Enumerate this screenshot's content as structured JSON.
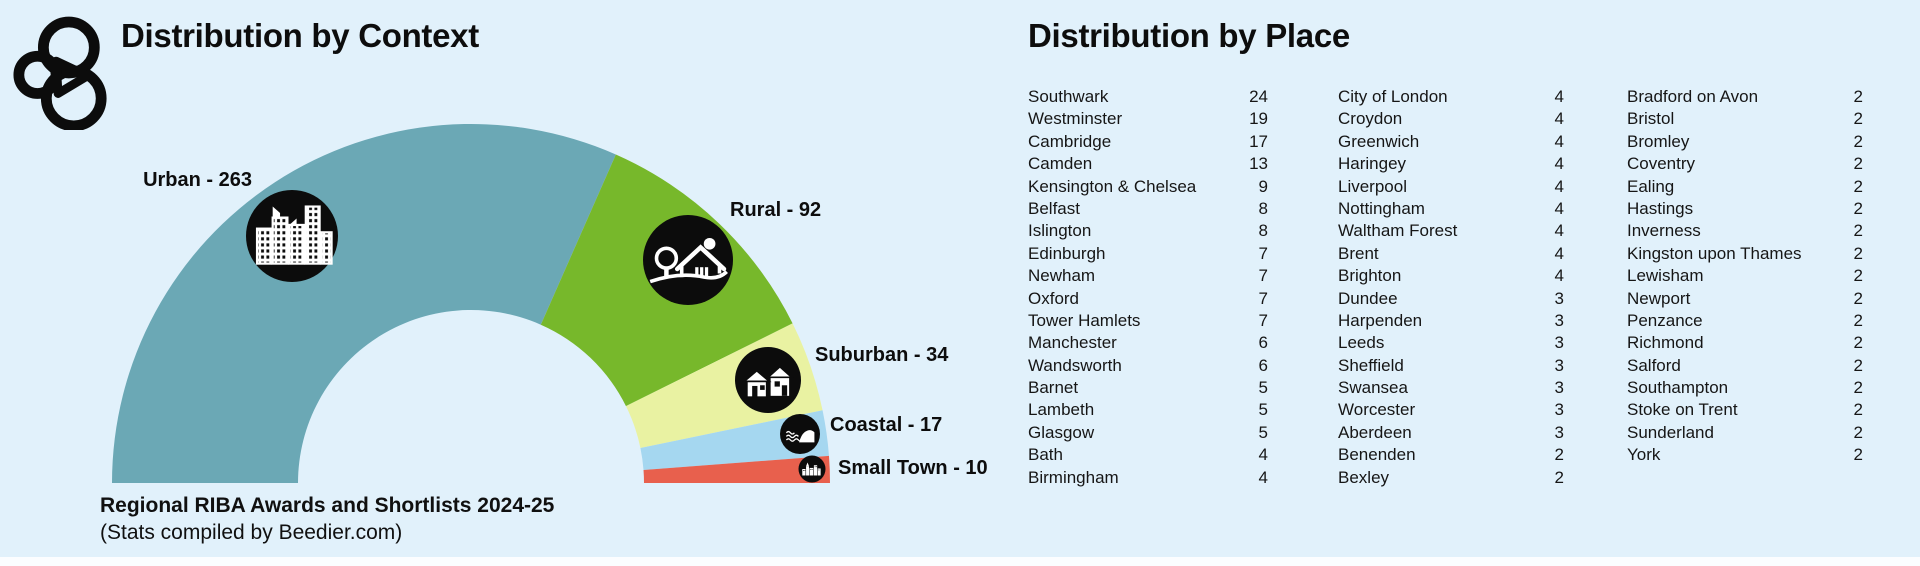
{
  "page": {
    "background_color": "#e1f1fb",
    "text_color": "#0d0d0d"
  },
  "context_section": {
    "title": "Distribution by Context",
    "footer_line1": "Regional RIBA Awards and Shortlists 2024-25",
    "footer_line2": "(Stats compiled by Beedier.com)"
  },
  "chart_data": {
    "type": "pie",
    "variant": "half-donut",
    "title": "Distribution by Context",
    "categories": [
      "Urban",
      "Rural",
      "Suburban",
      "Coastal",
      "Small Town"
    ],
    "values": [
      263,
      92,
      34,
      17,
      10
    ],
    "colors": [
      "#6ba8b5",
      "#77b82b",
      "#e9f2a2",
      "#a5d7f0",
      "#e8604d"
    ],
    "icon_names": [
      "urban-buildings-icon",
      "rural-house-icon",
      "suburban-houses-icon",
      "coastal-wave-icon",
      "small-town-icon"
    ],
    "label_separator": " - ",
    "start_angle_deg": 180,
    "end_angle_deg": 0,
    "legend_position": "around-arc"
  },
  "place_section": {
    "title": "Distribution by Place",
    "columns": [
      {
        "rows": [
          {
            "name": "Southwark",
            "value": 24
          },
          {
            "name": "Westminster",
            "value": 19
          },
          {
            "name": "Cambridge",
            "value": 17
          },
          {
            "name": "Camden",
            "value": 13
          },
          {
            "name": "Kensington & Chelsea",
            "value": 9
          },
          {
            "name": "Belfast",
            "value": 8
          },
          {
            "name": "Islington",
            "value": 8
          },
          {
            "name": "Edinburgh",
            "value": 7
          },
          {
            "name": "Newham",
            "value": 7
          },
          {
            "name": "Oxford",
            "value": 7
          },
          {
            "name": "Tower Hamlets",
            "value": 7
          },
          {
            "name": "Manchester",
            "value": 6
          },
          {
            "name": "Wandsworth",
            "value": 6
          },
          {
            "name": "Barnet",
            "value": 5
          },
          {
            "name": "Lambeth",
            "value": 5
          },
          {
            "name": "Glasgow",
            "value": 5
          },
          {
            "name": "Bath",
            "value": 4
          },
          {
            "name": "Birmingham",
            "value": 4
          }
        ]
      },
      {
        "rows": [
          {
            "name": "City of London",
            "value": 4
          },
          {
            "name": "Croydon",
            "value": 4
          },
          {
            "name": "Greenwich",
            "value": 4
          },
          {
            "name": "Haringey",
            "value": 4
          },
          {
            "name": "Liverpool",
            "value": 4
          },
          {
            "name": "Nottingham",
            "value": 4
          },
          {
            "name": "Waltham Forest",
            "value": 4
          },
          {
            "name": "Brent",
            "value": 4
          },
          {
            "name": "Brighton",
            "value": 4
          },
          {
            "name": "Dundee",
            "value": 3
          },
          {
            "name": "Harpenden",
            "value": 3
          },
          {
            "name": "Leeds",
            "value": 3
          },
          {
            "name": "Sheffield",
            "value": 3
          },
          {
            "name": "Swansea",
            "value": 3
          },
          {
            "name": "Worcester",
            "value": 3
          },
          {
            "name": "Aberdeen",
            "value": 3
          },
          {
            "name": "Benenden",
            "value": 2
          },
          {
            "name": "Bexley",
            "value": 2
          }
        ]
      },
      {
        "rows": [
          {
            "name": "Bradford on Avon",
            "value": 2
          },
          {
            "name": "Bristol",
            "value": 2
          },
          {
            "name": "Bromley",
            "value": 2
          },
          {
            "name": "Coventry",
            "value": 2
          },
          {
            "name": "Ealing",
            "value": 2
          },
          {
            "name": "Hastings",
            "value": 2
          },
          {
            "name": "Inverness",
            "value": 2
          },
          {
            "name": "Kingston upon Thames",
            "value": 2
          },
          {
            "name": "Lewisham",
            "value": 2
          },
          {
            "name": "Newport",
            "value": 2
          },
          {
            "name": "Penzance",
            "value": 2
          },
          {
            "name": "Richmond",
            "value": 2
          },
          {
            "name": "Salford",
            "value": 2
          },
          {
            "name": "Southampton",
            "value": 2
          },
          {
            "name": "Stoke on Trent",
            "value": 2
          },
          {
            "name": "Sunderland",
            "value": 2
          },
          {
            "name": "York",
            "value": 2
          }
        ]
      }
    ]
  }
}
